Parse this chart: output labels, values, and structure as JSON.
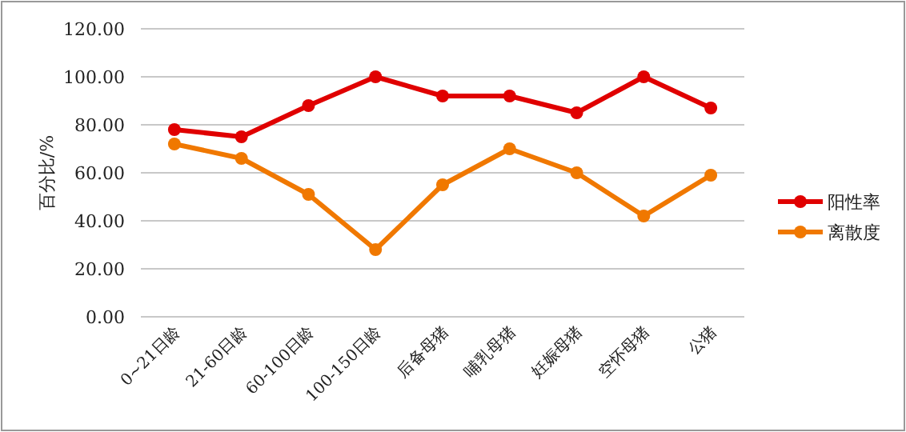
{
  "chart_data": {
    "type": "line",
    "ylabel": "百分比/%",
    "categories": [
      "0~21日龄",
      "21-60日龄",
      "60-100日龄",
      "100-150日龄",
      "后备母猪",
      "哺乳母猪",
      "妊娠母猪",
      "空怀母猪",
      "公猪"
    ],
    "series": [
      {
        "name": "阳性率",
        "color": "#e00000",
        "values": [
          78,
          75,
          88,
          100,
          92,
          92,
          85,
          100,
          87
        ]
      },
      {
        "name": "离散度",
        "color": "#f07800",
        "values": [
          72,
          66,
          51,
          28,
          55,
          70,
          60,
          42,
          59
        ]
      }
    ],
    "ylim": [
      0,
      120
    ],
    "yticks": [
      {
        "value": 0,
        "label": "0.00"
      },
      {
        "value": 20,
        "label": "20.00"
      },
      {
        "value": 40,
        "label": "40.00"
      },
      {
        "value": 60,
        "label": "60.00"
      },
      {
        "value": 80,
        "label": "80.00"
      },
      {
        "value": 100,
        "label": "100.00"
      },
      {
        "value": 120,
        "label": "120.00"
      }
    ],
    "grid": "y",
    "legend": "right",
    "marker": "circle",
    "line_style": "solid"
  }
}
